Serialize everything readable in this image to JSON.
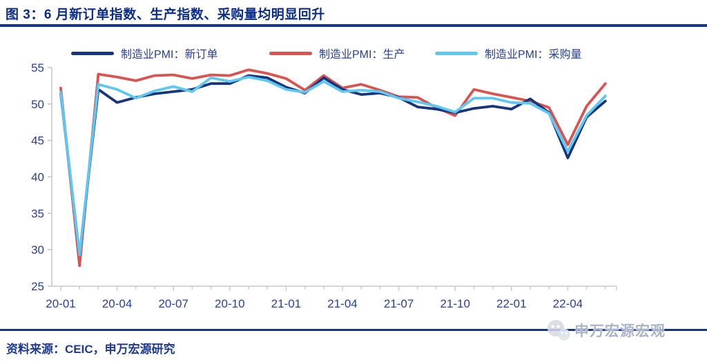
{
  "figure": {
    "title": "图 3：6 月新订单指数、生产指数、采购量均明显回升",
    "source": "资料来源：CEIC，申万宏源研究",
    "watermark": "申万宏源宏观"
  },
  "colors": {
    "title_blue": "#0a2d88",
    "text_blue": "#2a3f96",
    "rule_blue": "#16338f",
    "axis_gray": "#c9c9c9",
    "new_orders": "#17357e",
    "production": "#d95450",
    "purchasing": "#5ec8f2"
  },
  "chart_data": {
    "type": "line",
    "title": "图 3：6 月新订单指数、生产指数、采购量均明显回升",
    "x": [
      "2020-01",
      "2020-02",
      "2020-03",
      "2020-04",
      "2020-05",
      "2020-06",
      "2020-07",
      "2020-08",
      "2020-09",
      "2020-10",
      "2020-11",
      "2020-12",
      "2021-01",
      "2021-02",
      "2021-03",
      "2021-04",
      "2021-05",
      "2021-06",
      "2021-07",
      "2021-08",
      "2021-09",
      "2021-10",
      "2021-11",
      "2021-12",
      "2022-01",
      "2022-02",
      "2022-03",
      "2022-04",
      "2022-05",
      "2022-06"
    ],
    "x_tick_labels": [
      "20-01",
      "20-04",
      "20-07",
      "20-10",
      "21-01",
      "21-04",
      "21-07",
      "21-10",
      "22-01",
      "22-04"
    ],
    "ylim": [
      25,
      55
    ],
    "y_ticks": [
      25,
      30,
      35,
      40,
      45,
      50,
      55
    ],
    "grid": false,
    "legend_position": "top",
    "series": [
      {
        "name": "制造业PMI：新订单",
        "color": "#17357e",
        "values": [
          51.4,
          29.3,
          52.0,
          50.2,
          50.9,
          51.4,
          51.7,
          52.0,
          52.8,
          52.8,
          53.9,
          53.6,
          52.3,
          51.5,
          53.6,
          52.0,
          51.3,
          51.5,
          50.9,
          49.6,
          49.3,
          48.8,
          49.4,
          49.7,
          49.3,
          50.7,
          48.8,
          42.6,
          48.2,
          50.4
        ]
      },
      {
        "name": "制造业PMI：生产",
        "color": "#d95450",
        "values": [
          52.2,
          27.8,
          54.1,
          53.7,
          53.2,
          53.9,
          54.0,
          53.5,
          54.0,
          53.9,
          54.7,
          54.2,
          53.5,
          51.9,
          53.9,
          52.2,
          52.7,
          51.9,
          51.0,
          50.9,
          49.5,
          48.4,
          52.0,
          51.4,
          50.9,
          50.4,
          49.5,
          44.4,
          49.7,
          52.8
        ]
      },
      {
        "name": "制造业PMI：采购量",
        "color": "#5ec8f2",
        "values": [
          51.6,
          29.3,
          52.7,
          52.0,
          50.8,
          51.8,
          52.4,
          51.7,
          53.6,
          53.1,
          53.7,
          53.2,
          52.0,
          51.6,
          53.1,
          51.7,
          51.9,
          51.7,
          50.8,
          50.3,
          49.7,
          48.9,
          50.8,
          50.8,
          50.2,
          50.1,
          48.7,
          43.5,
          48.4,
          51.1
        ]
      }
    ]
  }
}
